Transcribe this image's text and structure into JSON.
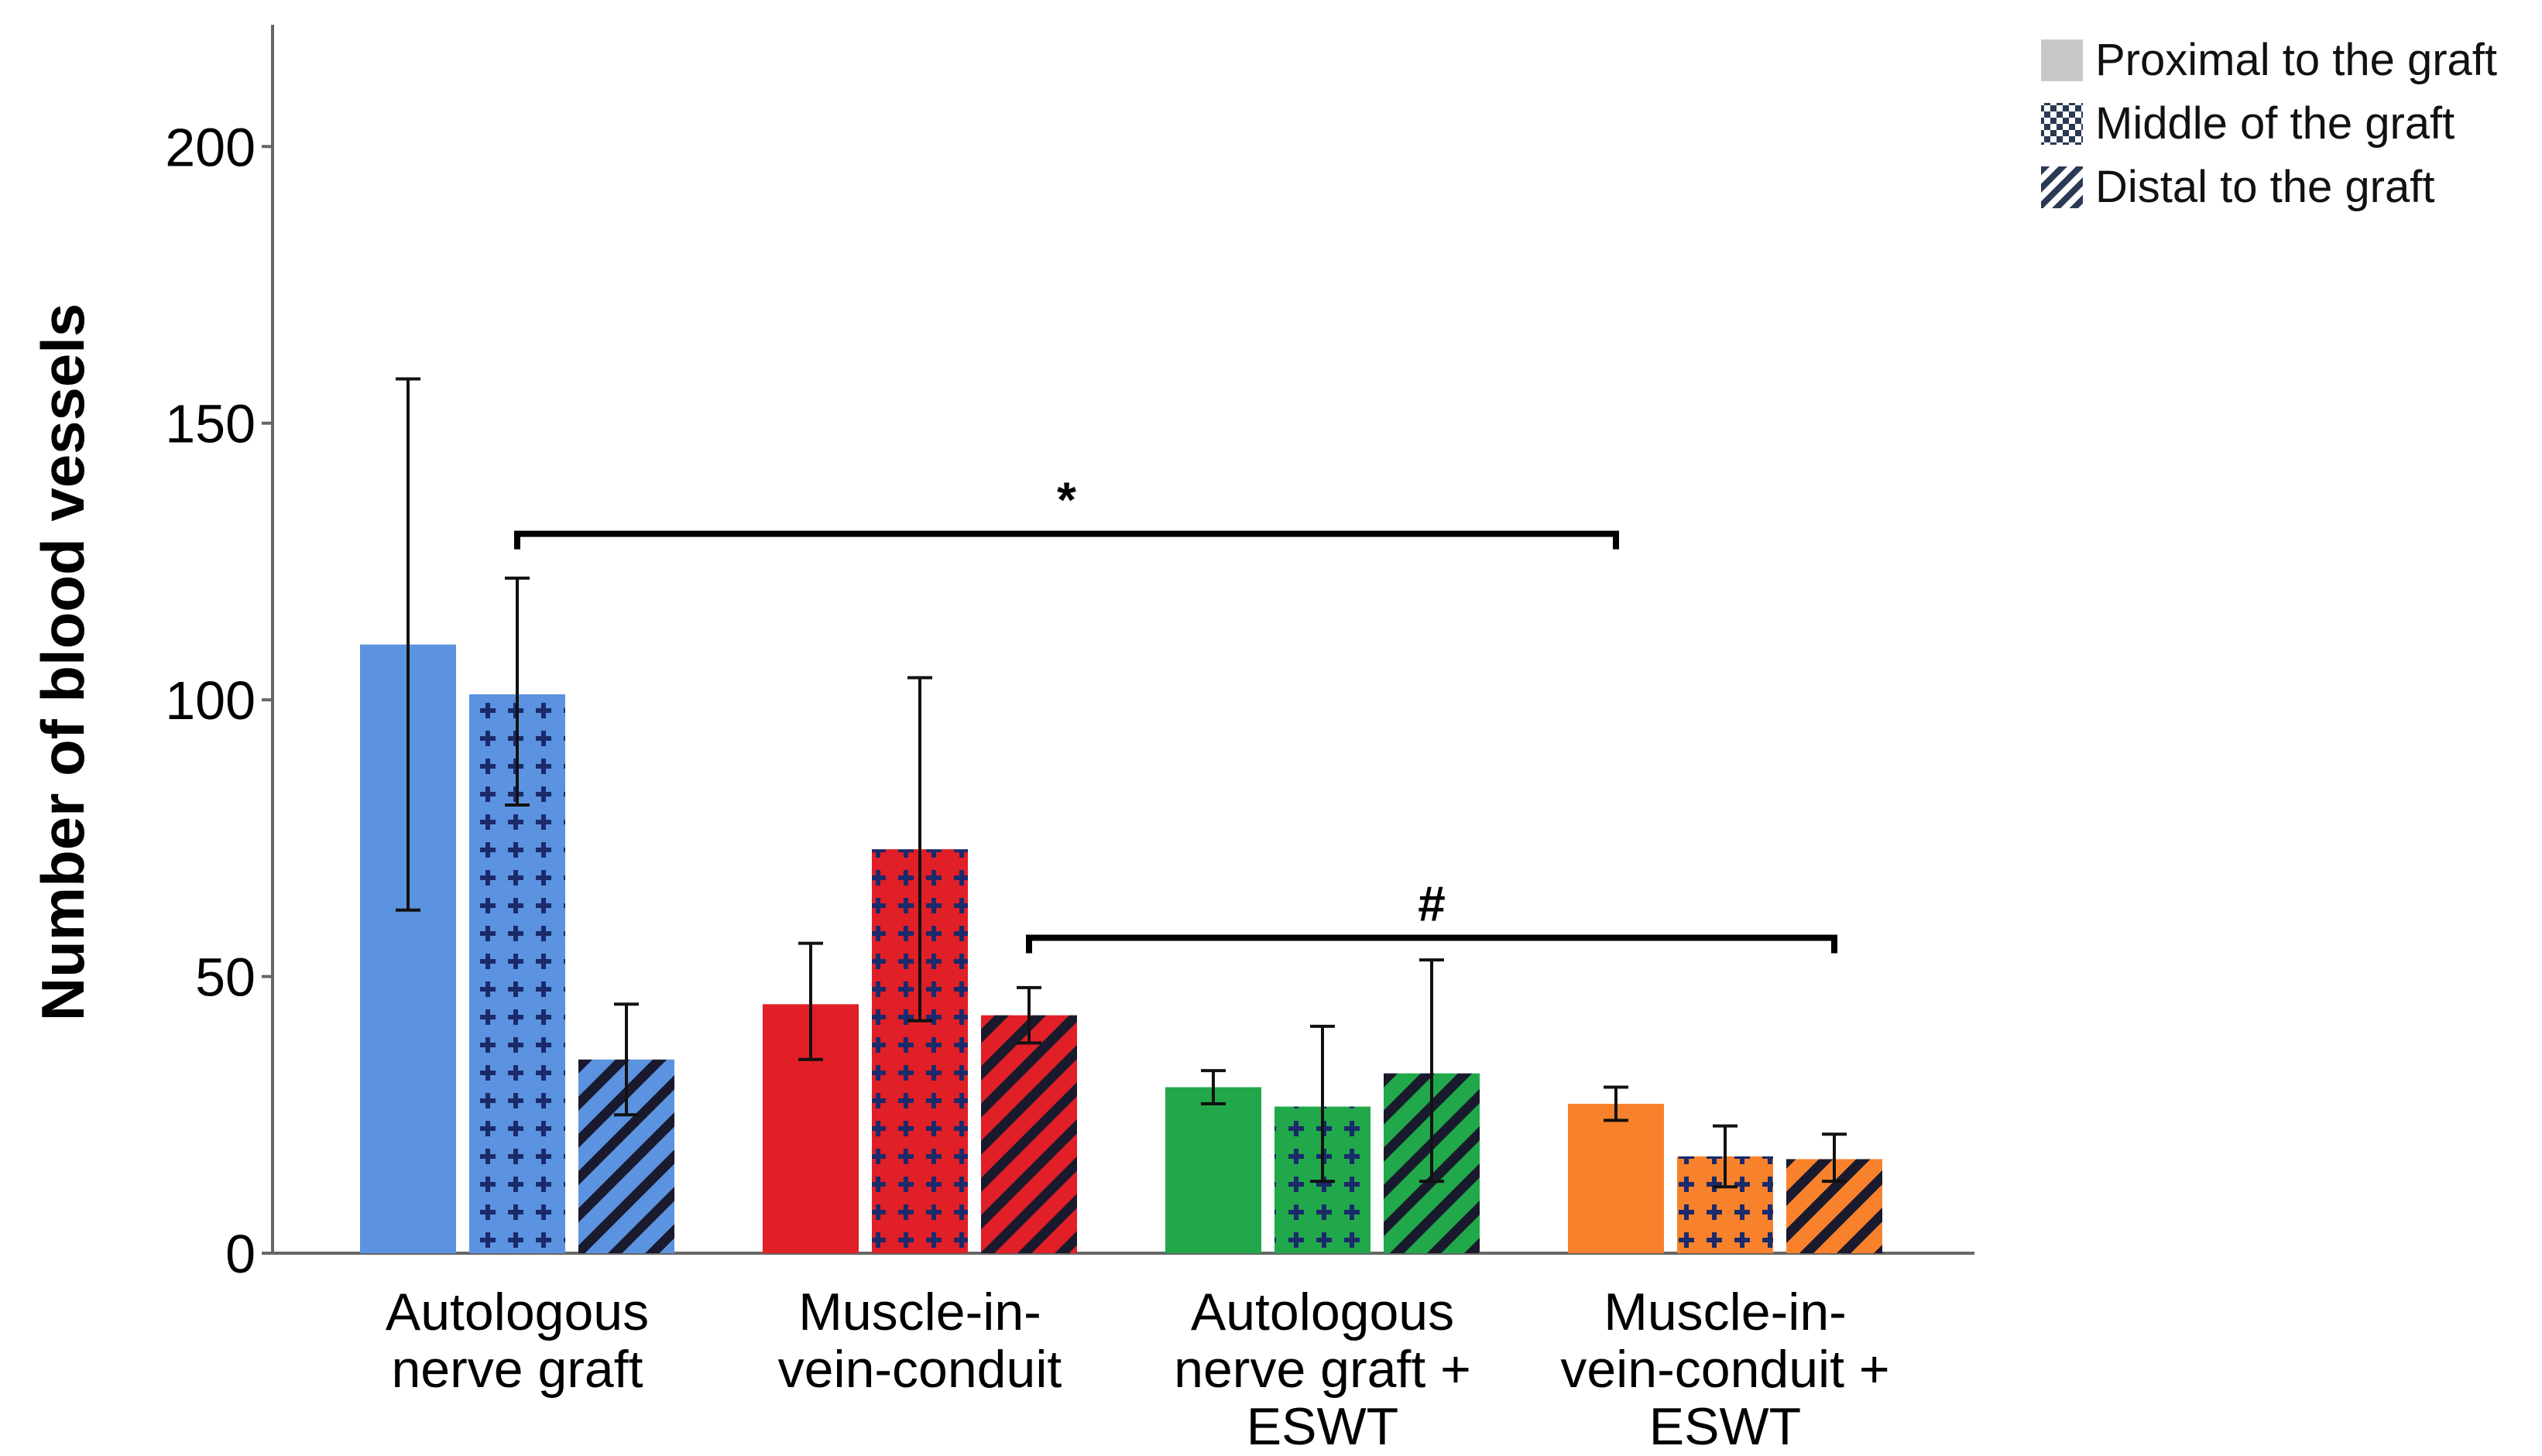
{
  "chart_data": {
    "type": "bar",
    "ylabel": "Number of blood vessels",
    "xlabel": "",
    "ylim": [
      0,
      222
    ],
    "yticks": [
      0,
      50,
      100,
      150,
      200
    ],
    "categories": [
      [
        "Autologous",
        "nerve graft"
      ],
      [
        "Muscle-in-",
        "vein-conduit"
      ],
      [
        "Autologous",
        "nerve graft +",
        "ESWT"
      ],
      [
        "Muscle-in-",
        "vein-conduit +",
        "ESWT"
      ]
    ],
    "series": [
      {
        "name": "Proximal to the graft",
        "pattern": "solid",
        "values": [
          110,
          45,
          30,
          27
        ],
        "error_low": [
          62,
          35,
          27,
          24
        ],
        "error_high": [
          158,
          56,
          33,
          30
        ]
      },
      {
        "name": "Middle of the graft",
        "pattern": "crosses",
        "values": [
          101,
          73,
          26.5,
          17.5
        ],
        "error_low": [
          81,
          42,
          13,
          12
        ],
        "error_high": [
          122,
          104,
          41,
          23
        ]
      },
      {
        "name": "Distal to the graft",
        "pattern": "stripes",
        "values": [
          35,
          43,
          32.5,
          17
        ],
        "error_low": [
          25,
          38,
          13,
          13
        ],
        "error_high": [
          45,
          48,
          53,
          21.5
        ]
      }
    ],
    "group_colors": [
      "#5b93e0",
      "#e01f27",
      "#21a84a",
      "#f8822c"
    ],
    "legend_swatch_colors": [
      "#c8c8c8",
      "#2a3a55",
      "#2a3a55"
    ],
    "legend_position": "top-right",
    "grid": false,
    "annotations": [
      {
        "label": "*",
        "from_group": 0,
        "from_series": 1,
        "to_group": 3,
        "to_series": 0,
        "y": 130
      },
      {
        "label": "#",
        "from_group": 1,
        "from_series": 2,
        "to_group": 3,
        "to_series": 2,
        "y": 57
      }
    ]
  }
}
